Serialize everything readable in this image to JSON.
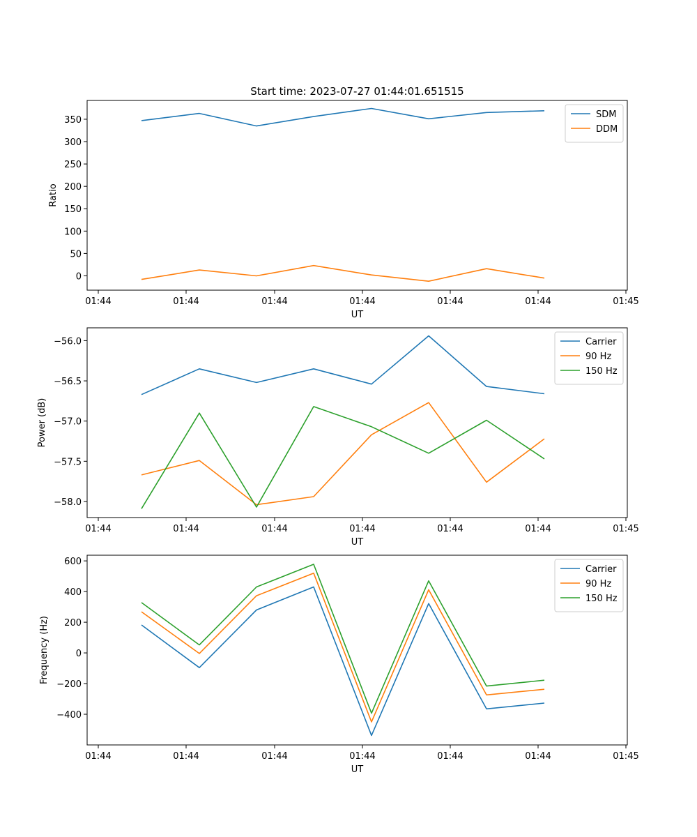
{
  "chart_data": [
    {
      "type": "line",
      "title": "Start time: 2023-07-27 01:44:01.651515",
      "xlabel": "UT",
      "ylabel": "Ratio",
      "x_ticks": [
        "01:44",
        "01:44",
        "01:44",
        "01:44",
        "01:44",
        "01:44",
        "01:45"
      ],
      "x": [
        0.5,
        1.15,
        1.8,
        2.45,
        3.1,
        3.75,
        4.4,
        5.05
      ],
      "xlim": [
        0,
        6
      ],
      "ylim": [
        -32,
        392
      ],
      "y_ticks": [
        0,
        50,
        100,
        150,
        200,
        250,
        300,
        350
      ],
      "legend_position": "top-right",
      "series": [
        {
          "name": "SDM",
          "color": "#1f77b4",
          "values": [
            347,
            363,
            335,
            356,
            374,
            351,
            365,
            369
          ]
        },
        {
          "name": "DDM",
          "color": "#ff7f0e",
          "values": [
            -8,
            13,
            0,
            23,
            2,
            -12,
            16,
            -5
          ]
        }
      ]
    },
    {
      "type": "line",
      "title": "",
      "xlabel": "UT",
      "ylabel": "Power (dB)",
      "x_ticks": [
        "01:44",
        "01:44",
        "01:44",
        "01:44",
        "01:44",
        "01:44",
        "01:45"
      ],
      "x": [
        0.5,
        1.15,
        1.8,
        2.45,
        3.1,
        3.75,
        4.4,
        5.05
      ],
      "xlim": [
        0,
        6
      ],
      "ylim": [
        -58.2,
        -55.84
      ],
      "y_ticks": [
        -58.0,
        -57.5,
        -57.0,
        -56.5,
        -56.0
      ],
      "y_tick_labels": [
        "−58.0",
        "−57.5",
        "−57.0",
        "−56.5",
        "−56.0"
      ],
      "legend_position": "top-right",
      "series": [
        {
          "name": "Carrier",
          "color": "#1f77b4",
          "values": [
            -56.67,
            -56.35,
            -56.52,
            -56.35,
            -56.54,
            -55.94,
            -56.57,
            -56.66
          ]
        },
        {
          "name": "90 Hz",
          "color": "#ff7f0e",
          "values": [
            -57.67,
            -57.49,
            -58.04,
            -57.94,
            -57.17,
            -56.77,
            -57.76,
            -57.22
          ]
        },
        {
          "name": "150 Hz",
          "color": "#2ca02c",
          "values": [
            -58.09,
            -56.9,
            -58.07,
            -56.82,
            -57.07,
            -57.4,
            -56.99,
            -57.47
          ]
        }
      ]
    },
    {
      "type": "line",
      "title": "",
      "xlabel": "UT",
      "ylabel": "Frequency (Hz)",
      "x_ticks": [
        "01:44",
        "01:44",
        "01:44",
        "01:44",
        "01:44",
        "01:44",
        "01:45"
      ],
      "x": [
        0.5,
        1.15,
        1.8,
        2.45,
        3.1,
        3.75,
        4.4,
        5.05
      ],
      "xlim": [
        0,
        6
      ],
      "ylim": [
        -600,
        637
      ],
      "y_ticks": [
        -400,
        -200,
        0,
        200,
        400,
        600
      ],
      "y_tick_labels": [
        "−400",
        "−200",
        "0",
        "200",
        "400",
        "600"
      ],
      "legend_position": "top-right",
      "series": [
        {
          "name": "Carrier",
          "color": "#1f77b4",
          "values": [
            182,
            -96,
            280,
            430,
            -538,
            322,
            -365,
            -327
          ]
        },
        {
          "name": "90 Hz",
          "color": "#ff7f0e",
          "values": [
            268,
            -4,
            373,
            520,
            -450,
            412,
            -274,
            -237
          ]
        },
        {
          "name": "150 Hz",
          "color": "#2ca02c",
          "values": [
            328,
            52,
            430,
            578,
            -393,
            470,
            -216,
            -178
          ]
        }
      ]
    }
  ]
}
